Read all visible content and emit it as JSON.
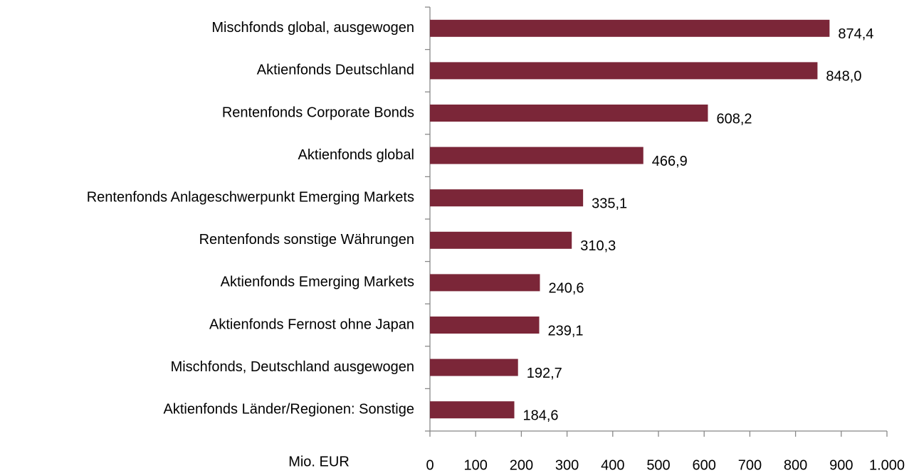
{
  "chart_data": {
    "type": "bar",
    "orientation": "horizontal",
    "x_axis_label": "Mio. EUR",
    "categories": [
      "Mischfonds global, ausgewogen",
      "Aktienfonds Deutschland",
      "Rentenfonds Corporate Bonds",
      "Aktienfonds global",
      "Rentenfonds Anlageschwerpunkt Emerging Markets",
      "Rentenfonds sonstige Währungen",
      "Aktienfonds Emerging Markets",
      "Aktienfonds Fernost ohne Japan",
      "Mischfonds, Deutschland ausgewogen",
      "Aktienfonds Länder/Regionen: Sonstige"
    ],
    "values": [
      874.4,
      848.0,
      608.2,
      466.9,
      335.1,
      310.3,
      240.6,
      239.1,
      192.7,
      184.6
    ],
    "value_labels": [
      "874,4",
      "848,0",
      "608,2",
      "466,9",
      "335,1",
      "310,3",
      "240,6",
      "239,1",
      "192,7",
      "184,6"
    ],
    "color": "#7b2638",
    "xlim": [
      0,
      1000
    ],
    "xticks": [
      0,
      100,
      200,
      300,
      400,
      500,
      600,
      700,
      800,
      900,
      {
        "value": 1000,
        "label": "1.000"
      }
    ]
  }
}
